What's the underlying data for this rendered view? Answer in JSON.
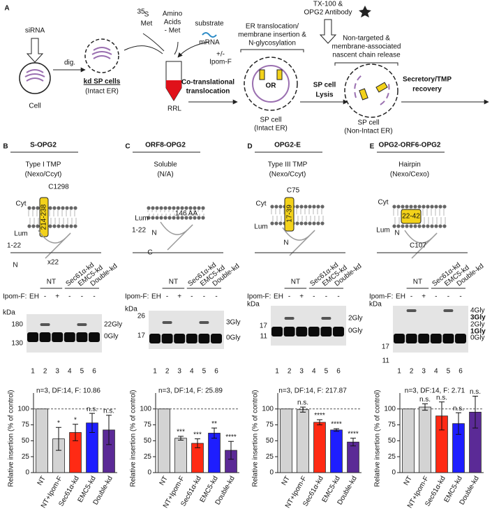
{
  "panel_a": {
    "label": "A",
    "sirna": "siRNA",
    "dig": "dig.",
    "cell": "Cell",
    "kd_sp_cells": "kd SP cells",
    "kd_sp_sub": "(Intact ER)",
    "met_sup": "35",
    "met_s": "S",
    "met": "Met",
    "amino": [
      "Amino",
      "Acids",
      "- Met"
    ],
    "substrate": [
      "substrate",
      "mRNA"
    ],
    "ipom": [
      "+/-",
      "Ipom-F"
    ],
    "rrl": "RRL",
    "cotrans": [
      "Co-translational",
      "translocation"
    ],
    "er_step": [
      "ER translocation/",
      "membrane insertion &",
      "N-glycosylation"
    ],
    "or": "OR",
    "sp_intact": [
      "SP cell",
      "(Intact ER)"
    ],
    "tx": [
      "TX-100 &",
      "OPG2 Antibody"
    ],
    "lysis": [
      "SP cell",
      "Lysis"
    ],
    "release": [
      "Non-targeted &",
      "membrane-associated",
      "nascent chain release"
    ],
    "sp_nonintact": [
      "SP cell",
      "(Non-Intact ER)"
    ],
    "recovery": [
      "Secretory/TMP",
      "recovery"
    ]
  },
  "panels": [
    {
      "label": "B",
      "title": "S-OPG2",
      "topology": [
        "Type I TMP",
        "(Nexo/Ccyt)"
      ],
      "diagram_labels": [
        "Cyt",
        "C1298",
        "Lum",
        "1-22",
        "N",
        "x22",
        "214-238"
      ],
      "lane_groups": [
        "NT",
        "Sec61α-kd",
        "EMC5-kd",
        "Double-kd"
      ],
      "ipom_label": "Ipom-F:",
      "ipom": [
        "EH",
        "-",
        "+",
        "-",
        "-",
        "-"
      ],
      "kda": "kDa",
      "markers": [
        "180",
        "130"
      ],
      "bands": [
        "22Gly",
        "0Gly"
      ],
      "lanes": [
        "1",
        "2",
        "3",
        "4",
        "5",
        "6"
      ],
      "stats": "n=3, DF:14, F: 10.86"
    },
    {
      "label": "C",
      "title": "ORF8-OPG2",
      "topology": [
        "Soluble",
        "(N/A)"
      ],
      "diagram_labels": [
        "Lum",
        "146 AA",
        "1-22",
        "N",
        "C"
      ],
      "lane_groups": [
        "NT",
        "Sec61α-kd",
        "EMC5-kd",
        "Double-kd"
      ],
      "ipom_label": "Ipom-F:",
      "ipom": [
        "EH",
        "-",
        "+",
        "-",
        "-",
        "-"
      ],
      "kda": "kDa",
      "markers": [
        "26",
        "17"
      ],
      "bands": [
        "3Gly",
        "0Gly"
      ],
      "lanes": [
        "1",
        "2",
        "3",
        "4",
        "5",
        "6"
      ],
      "stats": "n=3, DF:14, F: 25.89"
    },
    {
      "label": "D",
      "title": "OPG2-E",
      "topology": [
        "Type III TMP",
        "(Nexo/Ccyt)"
      ],
      "diagram_labels": [
        "Cyt",
        "C75",
        "Lum",
        "N",
        "17-39"
      ],
      "lane_groups": [
        "NT",
        "Sec61α-kd",
        "EMC5-kd",
        "Double-kd"
      ],
      "ipom_label": "Ipom-F:",
      "ipom": [
        "EH",
        "-",
        "+",
        "-",
        "-",
        "-"
      ],
      "kda": "kDa",
      "markers": [
        "17",
        "11"
      ],
      "bands": [
        "2Gly",
        "0Gly"
      ],
      "lanes": [
        "1",
        "2",
        "3",
        "4",
        "5",
        "6"
      ],
      "stats": "n=3, DF:14, F: 217.87"
    },
    {
      "label": "E",
      "title": "OPG2-ORF6-OPG2",
      "topology": [
        "Hairpin",
        "(Nexo/Cexo)"
      ],
      "diagram_labels": [
        "Cyt",
        "Lum",
        "N",
        "C107",
        "22-42"
      ],
      "lane_groups": [
        "NT",
        "Sec61α-kd",
        "EMC5-kd",
        "Double-kd"
      ],
      "ipom_label": "Ipom-F:",
      "ipom": [
        "EH",
        "-",
        "+",
        "-",
        "-",
        "-"
      ],
      "kda": "kDa",
      "markers": [
        "17",
        "11"
      ],
      "bands": [
        "4Gly",
        "3Gly",
        "2Gly",
        "1Gly",
        "0Gly"
      ],
      "lanes": [
        "1",
        "2",
        "3",
        "4",
        "5",
        "6"
      ],
      "stats": "n=3, DF:14, F: 2.71"
    }
  ],
  "chart_data": [
    {
      "type": "bar",
      "ylabel": "Relative insertion (% of control)",
      "categories": [
        "NT",
        "NT+Ipom-F",
        "Sec61α-kd",
        "EMC5-kd",
        "Double-kd"
      ],
      "values": [
        100,
        53,
        63,
        78,
        67
      ],
      "errors": [
        null,
        18,
        13,
        15,
        23
      ],
      "annotations": [
        null,
        "*",
        "*",
        "n.s.",
        "n.s."
      ],
      "colors": [
        "#d3d3d3",
        "#d3d3d3",
        "#ff2a14",
        "#1e1eff",
        "#5b2a96"
      ],
      "ylim": [
        0,
        125
      ],
      "yticks": [
        0,
        25,
        50,
        75,
        100
      ],
      "reference_line": 100
    },
    {
      "type": "bar",
      "ylabel": "Relative insertion (% of control)",
      "categories": [
        "NT",
        "NT+Ipom-F",
        "Sec61α-kd",
        "EMC5-kd",
        "Double-kd"
      ],
      "values": [
        100,
        54,
        46,
        62,
        35
      ],
      "errors": [
        null,
        3,
        7,
        8,
        14
      ],
      "annotations": [
        null,
        "***",
        "***",
        "**",
        "****"
      ],
      "colors": [
        "#d3d3d3",
        "#d3d3d3",
        "#ff2a14",
        "#1e1eff",
        "#5b2a96"
      ],
      "ylim": [
        0,
        125
      ],
      "yticks": [
        0,
        25,
        50,
        75,
        100
      ],
      "reference_line": 100
    },
    {
      "type": "bar",
      "ylabel": "Relative insertion (% of control)",
      "categories": [
        "NT",
        "NT+Ipom-F",
        "Sec61α-kd",
        "EMC5-kd",
        "Double-kd"
      ],
      "values": [
        100,
        99,
        79,
        67,
        48
      ],
      "errors": [
        null,
        4,
        4,
        2,
        6
      ],
      "annotations": [
        null,
        "n.s.",
        "****",
        "****",
        "****"
      ],
      "colors": [
        "#d3d3d3",
        "#d3d3d3",
        "#ff2a14",
        "#1e1eff",
        "#5b2a96"
      ],
      "ylim": [
        0,
        125
      ],
      "yticks": [
        0,
        25,
        50,
        75,
        100
      ],
      "reference_line": 100
    },
    {
      "type": "bar",
      "ylabel": "Relative insertion (% of control)",
      "categories": [
        "NT",
        "NT+Ipom-F",
        "Sec61α-kd",
        "EMC5-kd",
        "Double-kd"
      ],
      "values": [
        100,
        103,
        89,
        77,
        95
      ],
      "errors": [
        null,
        5,
        22,
        17,
        25
      ],
      "annotations": [
        null,
        "n.s.",
        "n.s.",
        "n.s.",
        "n.s."
      ],
      "colors": [
        "#d3d3d3",
        "#d3d3d3",
        "#ff2a14",
        "#1e1eff",
        "#5b2a96"
      ],
      "ylim": [
        0,
        125
      ],
      "yticks": [
        0,
        25,
        50,
        75,
        100
      ],
      "reference_line": 100
    }
  ]
}
